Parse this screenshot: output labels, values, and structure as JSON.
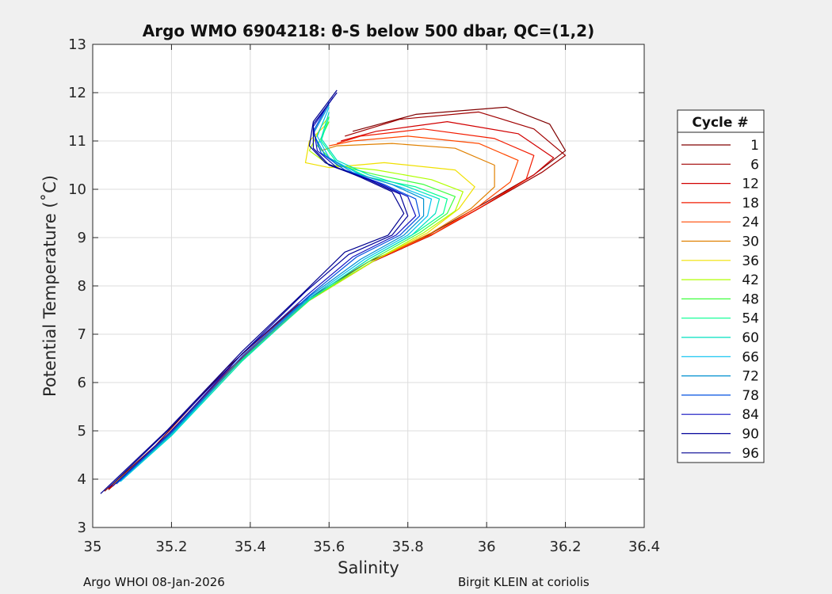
{
  "chart_data": {
    "type": "line",
    "title": "Argo WMO 6904218: θ-S below 500 dbar,  QC=(1,2)",
    "xlabel": "Salinity",
    "ylabel": "Potential Temperature (˚C)",
    "xlim": [
      35,
      36.4
    ],
    "ylim": [
      3,
      13
    ],
    "x_ticks": [
      "35",
      "35.2",
      "35.4",
      "35.6",
      "35.8",
      "36",
      "36.2",
      "36.4"
    ],
    "y_ticks": [
      "3",
      "4",
      "5",
      "6",
      "7",
      "8",
      "9",
      "10",
      "11",
      "12",
      "13"
    ],
    "grid": true,
    "legend": {
      "title": "Cycle #",
      "placement": "right-outside"
    },
    "series": [
      {
        "name": "1",
        "color": "#800000",
        "points": [
          [
            35.03,
            3.75
          ],
          [
            35.16,
            4.7
          ],
          [
            35.34,
            6.3
          ],
          [
            35.52,
            7.6
          ],
          [
            35.7,
            8.5
          ],
          [
            35.84,
            9.0
          ],
          [
            35.96,
            9.55
          ],
          [
            36.12,
            10.3
          ],
          [
            36.2,
            10.8
          ],
          [
            36.16,
            11.35
          ],
          [
            36.05,
            11.7
          ],
          [
            35.82,
            11.55
          ],
          [
            35.66,
            11.2
          ]
        ]
      },
      {
        "name": "6",
        "color": "#a00000",
        "points": [
          [
            35.04,
            3.78
          ],
          [
            35.17,
            4.75
          ],
          [
            35.35,
            6.3
          ],
          [
            35.53,
            7.6
          ],
          [
            35.71,
            8.5
          ],
          [
            35.86,
            9.05
          ],
          [
            35.98,
            9.6
          ],
          [
            36.14,
            10.35
          ],
          [
            36.2,
            10.7
          ],
          [
            36.12,
            11.25
          ],
          [
            35.98,
            11.6
          ],
          [
            35.78,
            11.45
          ],
          [
            35.64,
            11.1
          ]
        ]
      },
      {
        "name": "12",
        "color": "#d10000",
        "points": [
          [
            35.04,
            3.8
          ],
          [
            35.17,
            4.75
          ],
          [
            35.35,
            6.3
          ],
          [
            35.53,
            7.62
          ],
          [
            35.71,
            8.5
          ],
          [
            35.86,
            9.05
          ],
          [
            35.98,
            9.6
          ],
          [
            36.12,
            10.3
          ],
          [
            36.17,
            10.65
          ],
          [
            36.08,
            11.15
          ],
          [
            35.9,
            11.4
          ],
          [
            35.72,
            11.2
          ],
          [
            35.63,
            11.0
          ]
        ]
      },
      {
        "name": "18",
        "color": "#f21b00",
        "points": [
          [
            35.05,
            3.85
          ],
          [
            35.18,
            4.8
          ],
          [
            35.36,
            6.35
          ],
          [
            35.54,
            7.65
          ],
          [
            35.72,
            8.55
          ],
          [
            35.87,
            9.1
          ],
          [
            35.99,
            9.65
          ],
          [
            36.1,
            10.2
          ],
          [
            36.12,
            10.7
          ],
          [
            36.02,
            11.05
          ],
          [
            35.84,
            11.25
          ],
          [
            35.68,
            11.1
          ],
          [
            35.62,
            10.95
          ]
        ]
      },
      {
        "name": "24",
        "color": "#ff4800",
        "points": [
          [
            35.05,
            3.85
          ],
          [
            35.18,
            4.8
          ],
          [
            35.36,
            6.35
          ],
          [
            35.54,
            7.65
          ],
          [
            35.72,
            8.55
          ],
          [
            35.87,
            9.1
          ],
          [
            35.98,
            9.65
          ],
          [
            36.06,
            10.15
          ],
          [
            36.08,
            10.6
          ],
          [
            35.98,
            10.95
          ],
          [
            35.8,
            11.1
          ],
          [
            35.66,
            11.0
          ],
          [
            35.6,
            10.9
          ]
        ]
      },
      {
        "name": "30",
        "color": "#e08000",
        "points": [
          [
            35.05,
            3.88
          ],
          [
            35.18,
            4.82
          ],
          [
            35.36,
            6.35
          ],
          [
            35.54,
            7.65
          ],
          [
            35.72,
            8.55
          ],
          [
            35.86,
            9.1
          ],
          [
            35.96,
            9.6
          ],
          [
            36.02,
            10.05
          ],
          [
            36.02,
            10.5
          ],
          [
            35.92,
            10.85
          ],
          [
            35.76,
            10.95
          ],
          [
            35.62,
            10.9
          ],
          [
            35.58,
            10.8
          ]
        ]
      },
      {
        "name": "36",
        "color": "#f0e000",
        "points": [
          [
            35.06,
            3.9
          ],
          [
            35.19,
            4.85
          ],
          [
            35.37,
            6.4
          ],
          [
            35.55,
            7.7
          ],
          [
            35.72,
            8.55
          ],
          [
            35.85,
            9.1
          ],
          [
            35.93,
            9.6
          ],
          [
            35.97,
            10.05
          ],
          [
            35.92,
            10.4
          ],
          [
            35.74,
            10.55
          ],
          [
            35.6,
            10.45
          ],
          [
            35.54,
            10.55
          ],
          [
            35.55,
            11.0
          ],
          [
            35.6,
            11.4
          ]
        ]
      },
      {
        "name": "42",
        "color": "#b0ff00",
        "points": [
          [
            35.06,
            3.92
          ],
          [
            35.19,
            4.85
          ],
          [
            35.37,
            6.4
          ],
          [
            35.55,
            7.7
          ],
          [
            35.72,
            8.55
          ],
          [
            35.84,
            9.1
          ],
          [
            35.92,
            9.55
          ],
          [
            35.94,
            9.95
          ],
          [
            35.86,
            10.2
          ],
          [
            35.72,
            10.4
          ],
          [
            35.6,
            10.5
          ],
          [
            35.55,
            10.8
          ],
          [
            35.58,
            11.3
          ],
          [
            35.6,
            11.5
          ]
        ]
      },
      {
        "name": "48",
        "color": "#40ff40",
        "points": [
          [
            35.06,
            3.93
          ],
          [
            35.19,
            4.87
          ],
          [
            35.37,
            6.4
          ],
          [
            35.55,
            7.7
          ],
          [
            35.71,
            8.55
          ],
          [
            35.83,
            9.1
          ],
          [
            35.9,
            9.5
          ],
          [
            35.92,
            9.85
          ],
          [
            35.84,
            10.1
          ],
          [
            35.72,
            10.3
          ],
          [
            35.62,
            10.5
          ],
          [
            35.57,
            10.9
          ],
          [
            35.6,
            11.4
          ]
        ]
      },
      {
        "name": "54",
        "color": "#00ff90",
        "points": [
          [
            35.07,
            3.95
          ],
          [
            35.2,
            4.9
          ],
          [
            35.38,
            6.45
          ],
          [
            35.55,
            7.72
          ],
          [
            35.7,
            8.55
          ],
          [
            35.82,
            9.1
          ],
          [
            35.89,
            9.5
          ],
          [
            35.9,
            9.8
          ],
          [
            35.82,
            10.05
          ],
          [
            35.7,
            10.25
          ],
          [
            35.62,
            10.55
          ],
          [
            35.58,
            11.0
          ],
          [
            35.6,
            11.5
          ]
        ]
      },
      {
        "name": "60",
        "color": "#00e0c0",
        "points": [
          [
            35.07,
            3.95
          ],
          [
            35.2,
            4.9
          ],
          [
            35.38,
            6.45
          ],
          [
            35.55,
            7.72
          ],
          [
            35.7,
            8.55
          ],
          [
            35.81,
            9.05
          ],
          [
            35.87,
            9.5
          ],
          [
            35.88,
            9.8
          ],
          [
            35.8,
            10.05
          ],
          [
            35.7,
            10.3
          ],
          [
            35.62,
            10.6
          ],
          [
            35.58,
            11.05
          ],
          [
            35.6,
            11.6
          ]
        ]
      },
      {
        "name": "66",
        "color": "#00c0f0",
        "points": [
          [
            35.07,
            3.95
          ],
          [
            35.2,
            4.92
          ],
          [
            35.38,
            6.5
          ],
          [
            35.55,
            7.75
          ],
          [
            35.69,
            8.55
          ],
          [
            35.8,
            9.05
          ],
          [
            35.85,
            9.45
          ],
          [
            35.86,
            9.8
          ],
          [
            35.78,
            10.05
          ],
          [
            35.68,
            10.3
          ],
          [
            35.6,
            10.65
          ],
          [
            35.57,
            11.1
          ],
          [
            35.6,
            11.7
          ]
        ]
      },
      {
        "name": "72",
        "color": "#0090d0",
        "points": [
          [
            35.06,
            3.9
          ],
          [
            35.2,
            4.95
          ],
          [
            35.38,
            6.5
          ],
          [
            35.55,
            7.78
          ],
          [
            35.68,
            8.55
          ],
          [
            35.79,
            9.05
          ],
          [
            35.84,
            9.45
          ],
          [
            35.84,
            9.8
          ],
          [
            35.76,
            10.1
          ],
          [
            35.66,
            10.35
          ],
          [
            35.59,
            10.7
          ],
          [
            35.56,
            11.15
          ],
          [
            35.6,
            11.75
          ]
        ]
      },
      {
        "name": "78",
        "color": "#0050e0",
        "points": [
          [
            35.06,
            3.9
          ],
          [
            35.2,
            4.97
          ],
          [
            35.38,
            6.55
          ],
          [
            35.55,
            7.8
          ],
          [
            35.67,
            8.6
          ],
          [
            35.78,
            9.05
          ],
          [
            35.83,
            9.45
          ],
          [
            35.82,
            9.8
          ],
          [
            35.74,
            10.1
          ],
          [
            35.64,
            10.4
          ],
          [
            35.58,
            10.75
          ],
          [
            35.56,
            11.2
          ],
          [
            35.6,
            11.8
          ]
        ]
      },
      {
        "name": "84",
        "color": "#1010c0",
        "points": [
          [
            35.05,
            3.85
          ],
          [
            35.2,
            5.0
          ],
          [
            35.38,
            6.6
          ],
          [
            35.55,
            7.85
          ],
          [
            35.66,
            8.6
          ],
          [
            35.77,
            9.05
          ],
          [
            35.82,
            9.45
          ],
          [
            35.8,
            9.85
          ],
          [
            35.72,
            10.15
          ],
          [
            35.62,
            10.45
          ],
          [
            35.57,
            10.8
          ],
          [
            35.56,
            11.3
          ],
          [
            35.61,
            11.9
          ]
        ]
      },
      {
        "name": "90",
        "color": "#00009a",
        "points": [
          [
            35.04,
            3.82
          ],
          [
            35.19,
            5.0
          ],
          [
            35.38,
            6.6
          ],
          [
            35.54,
            7.88
          ],
          [
            35.65,
            8.65
          ],
          [
            35.76,
            9.05
          ],
          [
            35.8,
            9.45
          ],
          [
            35.78,
            9.9
          ],
          [
            35.7,
            10.2
          ],
          [
            35.6,
            10.5
          ],
          [
            35.56,
            10.85
          ],
          [
            35.56,
            11.35
          ],
          [
            35.62,
            12.0
          ]
        ]
      },
      {
        "name": "96",
        "color": "#000090",
        "points": [
          [
            35.02,
            3.7
          ],
          [
            35.19,
            5.02
          ],
          [
            35.38,
            6.65
          ],
          [
            35.54,
            7.9
          ],
          [
            35.64,
            8.7
          ],
          [
            35.75,
            9.05
          ],
          [
            35.79,
            9.5
          ],
          [
            35.76,
            9.95
          ],
          [
            35.68,
            10.25
          ],
          [
            35.59,
            10.55
          ],
          [
            35.55,
            10.9
          ],
          [
            35.56,
            11.4
          ],
          [
            35.62,
            12.05
          ]
        ]
      }
    ]
  },
  "footer": {
    "left": "Argo WHOI 08-Jan-2026",
    "right": "Birgit KLEIN at coriolis"
  }
}
